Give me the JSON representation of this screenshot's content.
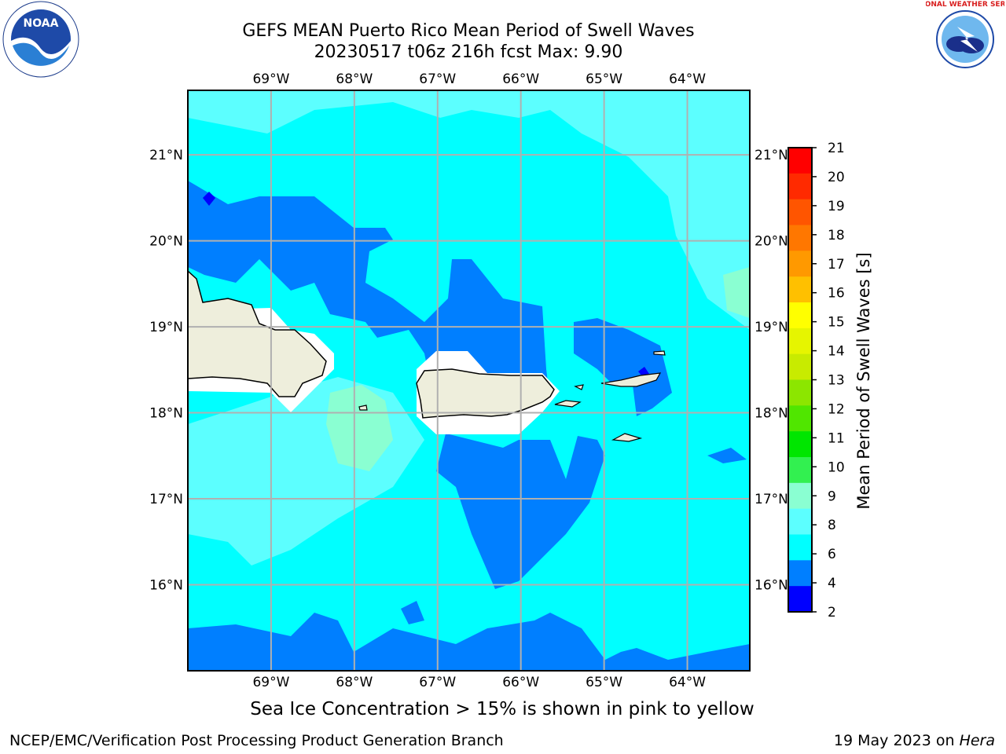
{
  "title": {
    "line1": "GEFS MEAN Puerto Rico Mean Period of Swell Waves",
    "line2": "20230517 t06z 216h fcst   Max: 9.90"
  },
  "axes": {
    "lon_labels": [
      "69°W",
      "68°W",
      "67°W",
      "66°W",
      "65°W",
      "64°W"
    ],
    "lat_labels": [
      "21°N",
      "20°N",
      "19°N",
      "18°N",
      "17°N",
      "16°N"
    ],
    "lon_range": [
      -70.0,
      -63.25
    ],
    "lat_range": [
      15.0,
      21.75
    ],
    "grid": true
  },
  "colorbar": {
    "label": "Mean Period of Swell Waves [s]",
    "ticks": [
      "21",
      "20",
      "19",
      "18",
      "17",
      "16",
      "15",
      "14",
      "13",
      "12",
      "11",
      "10",
      "9",
      "8",
      "6",
      "4",
      "2"
    ],
    "colors": [
      "#ff0000",
      "#ff2a00",
      "#ff5500",
      "#ff7700",
      "#ff9900",
      "#ffc000",
      "#ffff00",
      "#e6f500",
      "#c8eb00",
      "#8ce600",
      "#50e600",
      "#00e600",
      "#32f050",
      "#8affd2",
      "#5cffff",
      "#00ffff",
      "#007fff",
      "#0000ff"
    ]
  },
  "map": {
    "ocean_color": "#00ffff",
    "land_color": "#eeeedc",
    "mask_color": "#ffffff",
    "contour_colors": {
      "level_2_4": "#0000ff",
      "level_4_6": "#007fff",
      "level_6_8": "#00ffff",
      "level_8_9": "#5cffff",
      "level_9_10": "#8affd2"
    }
  },
  "footnote": "Sea Ice Concentration > 15% is shown in pink to yellow",
  "credits": {
    "left": "NCEP/EMC/Verification Post Processing Product Generation Branch",
    "right_date": "19 May 2023 on ",
    "right_host": "Hera"
  },
  "logos": {
    "noaa": "NOAA",
    "nws": "NATIONAL WEATHER SERVICE"
  }
}
